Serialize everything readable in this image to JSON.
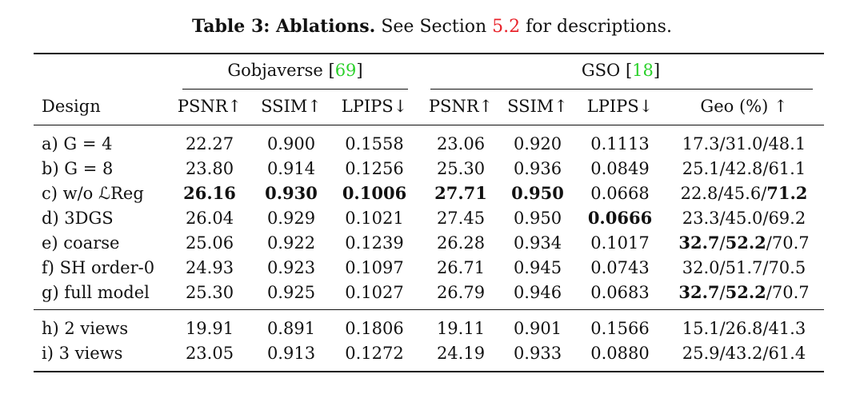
{
  "caption": {
    "title": "Table 3: Ablations.",
    "text_before": " See Section ",
    "ref": "5.2",
    "text_after": " for descriptions."
  },
  "groups": [
    {
      "name": "Gobjaverse ",
      "ref": "69"
    },
    {
      "name": "GSO ",
      "ref": "18"
    }
  ],
  "columns": [
    "Design",
    "PSNR↑",
    "SSIM↑",
    "LPIPS↓",
    "PSNR↑",
    "SSIM↑",
    "LPIPS↓",
    "Geo (%) ↑"
  ],
  "rows": [
    {
      "label": "a) G = 4",
      "values": [
        "22.27",
        "0.900",
        "0.1558",
        "23.06",
        "0.920",
        "0.1113",
        "17.3/31.0/48.1"
      ]
    },
    {
      "label": "b) G = 8",
      "values": [
        "23.80",
        "0.914",
        "0.1256",
        "25.30",
        "0.936",
        "0.0849",
        "25.1/42.8/61.1"
      ]
    },
    {
      "label": "c) w/o ℒReg",
      "values": [
        "26.16",
        "0.930",
        "0.1006",
        "27.71",
        "0.950",
        "0.0668",
        "22.8/45.6/71.2"
      ]
    },
    {
      "label": "d) 3DGS",
      "values": [
        "26.04",
        "0.929",
        "0.1021",
        "27.45",
        "0.950",
        "0.0666",
        "23.3/45.0/69.2"
      ]
    },
    {
      "label": "e) coarse",
      "values": [
        "25.06",
        "0.922",
        "0.1239",
        "26.28",
        "0.934",
        "0.1017",
        "32.7/52.2/70.7"
      ]
    },
    {
      "label": "f) SH order-0",
      "values": [
        "24.93",
        "0.923",
        "0.1097",
        "26.71",
        "0.945",
        "0.0743",
        "32.0/51.7/70.5"
      ]
    },
    {
      "label": "g) full model",
      "values": [
        "25.30",
        "0.925",
        "0.1027",
        "26.79",
        "0.946",
        "0.0683",
        "32.7/52.2/70.7"
      ]
    },
    {
      "label": "h) 2 views",
      "values": [
        "19.91",
        "0.891",
        "0.1806",
        "19.11",
        "0.901",
        "0.1566",
        "15.1/26.8/41.3"
      ]
    },
    {
      "label": "i) 3 views",
      "values": [
        "23.05",
        "0.913",
        "0.1272",
        "24.19",
        "0.933",
        "0.0880",
        "25.9/43.2/61.4"
      ]
    }
  ],
  "bold_cells": [
    [
      2,
      0
    ],
    [
      2,
      1
    ],
    [
      2,
      2
    ],
    [
      2,
      3
    ],
    [
      2,
      4
    ],
    [
      3,
      5
    ]
  ],
  "geo_bold": {
    "2": [
      false,
      false,
      true
    ],
    "4": [
      true,
      true,
      false
    ],
    "6": [
      true,
      true,
      false
    ]
  },
  "colors": {
    "ref_red": "#e8232b",
    "ref_green": "#2bd12b",
    "text": "#111111"
  }
}
